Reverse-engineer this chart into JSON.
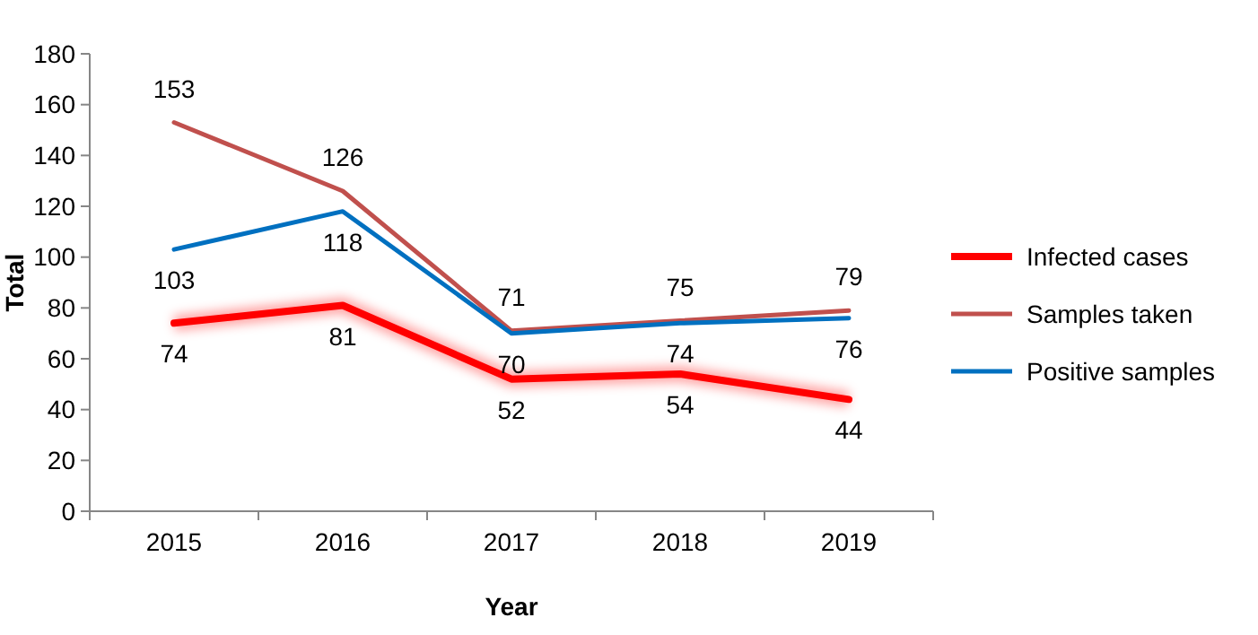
{
  "chart_data": {
    "type": "line",
    "xlabel": "Year",
    "ylabel": "Total",
    "categories": [
      "2015",
      "2016",
      "2017",
      "2018",
      "2019"
    ],
    "series": [
      {
        "name": "Infected cases",
        "color": "#ff0000",
        "values": [
          74,
          81,
          52,
          54,
          44
        ]
      },
      {
        "name": "Samples taken",
        "color": "#c0504d",
        "values": [
          153,
          126,
          71,
          75,
          79
        ]
      },
      {
        "name": "Positive samples",
        "color": "#0070c0",
        "values": [
          103,
          118,
          70,
          74,
          76
        ]
      }
    ],
    "ylim": [
      0,
      180
    ],
    "yticks": [
      0,
      20,
      40,
      60,
      80,
      100,
      120,
      140,
      160,
      180
    ],
    "data_labels": true,
    "legend": "right",
    "grid": false,
    "marker": "none",
    "line_style": "solid"
  }
}
